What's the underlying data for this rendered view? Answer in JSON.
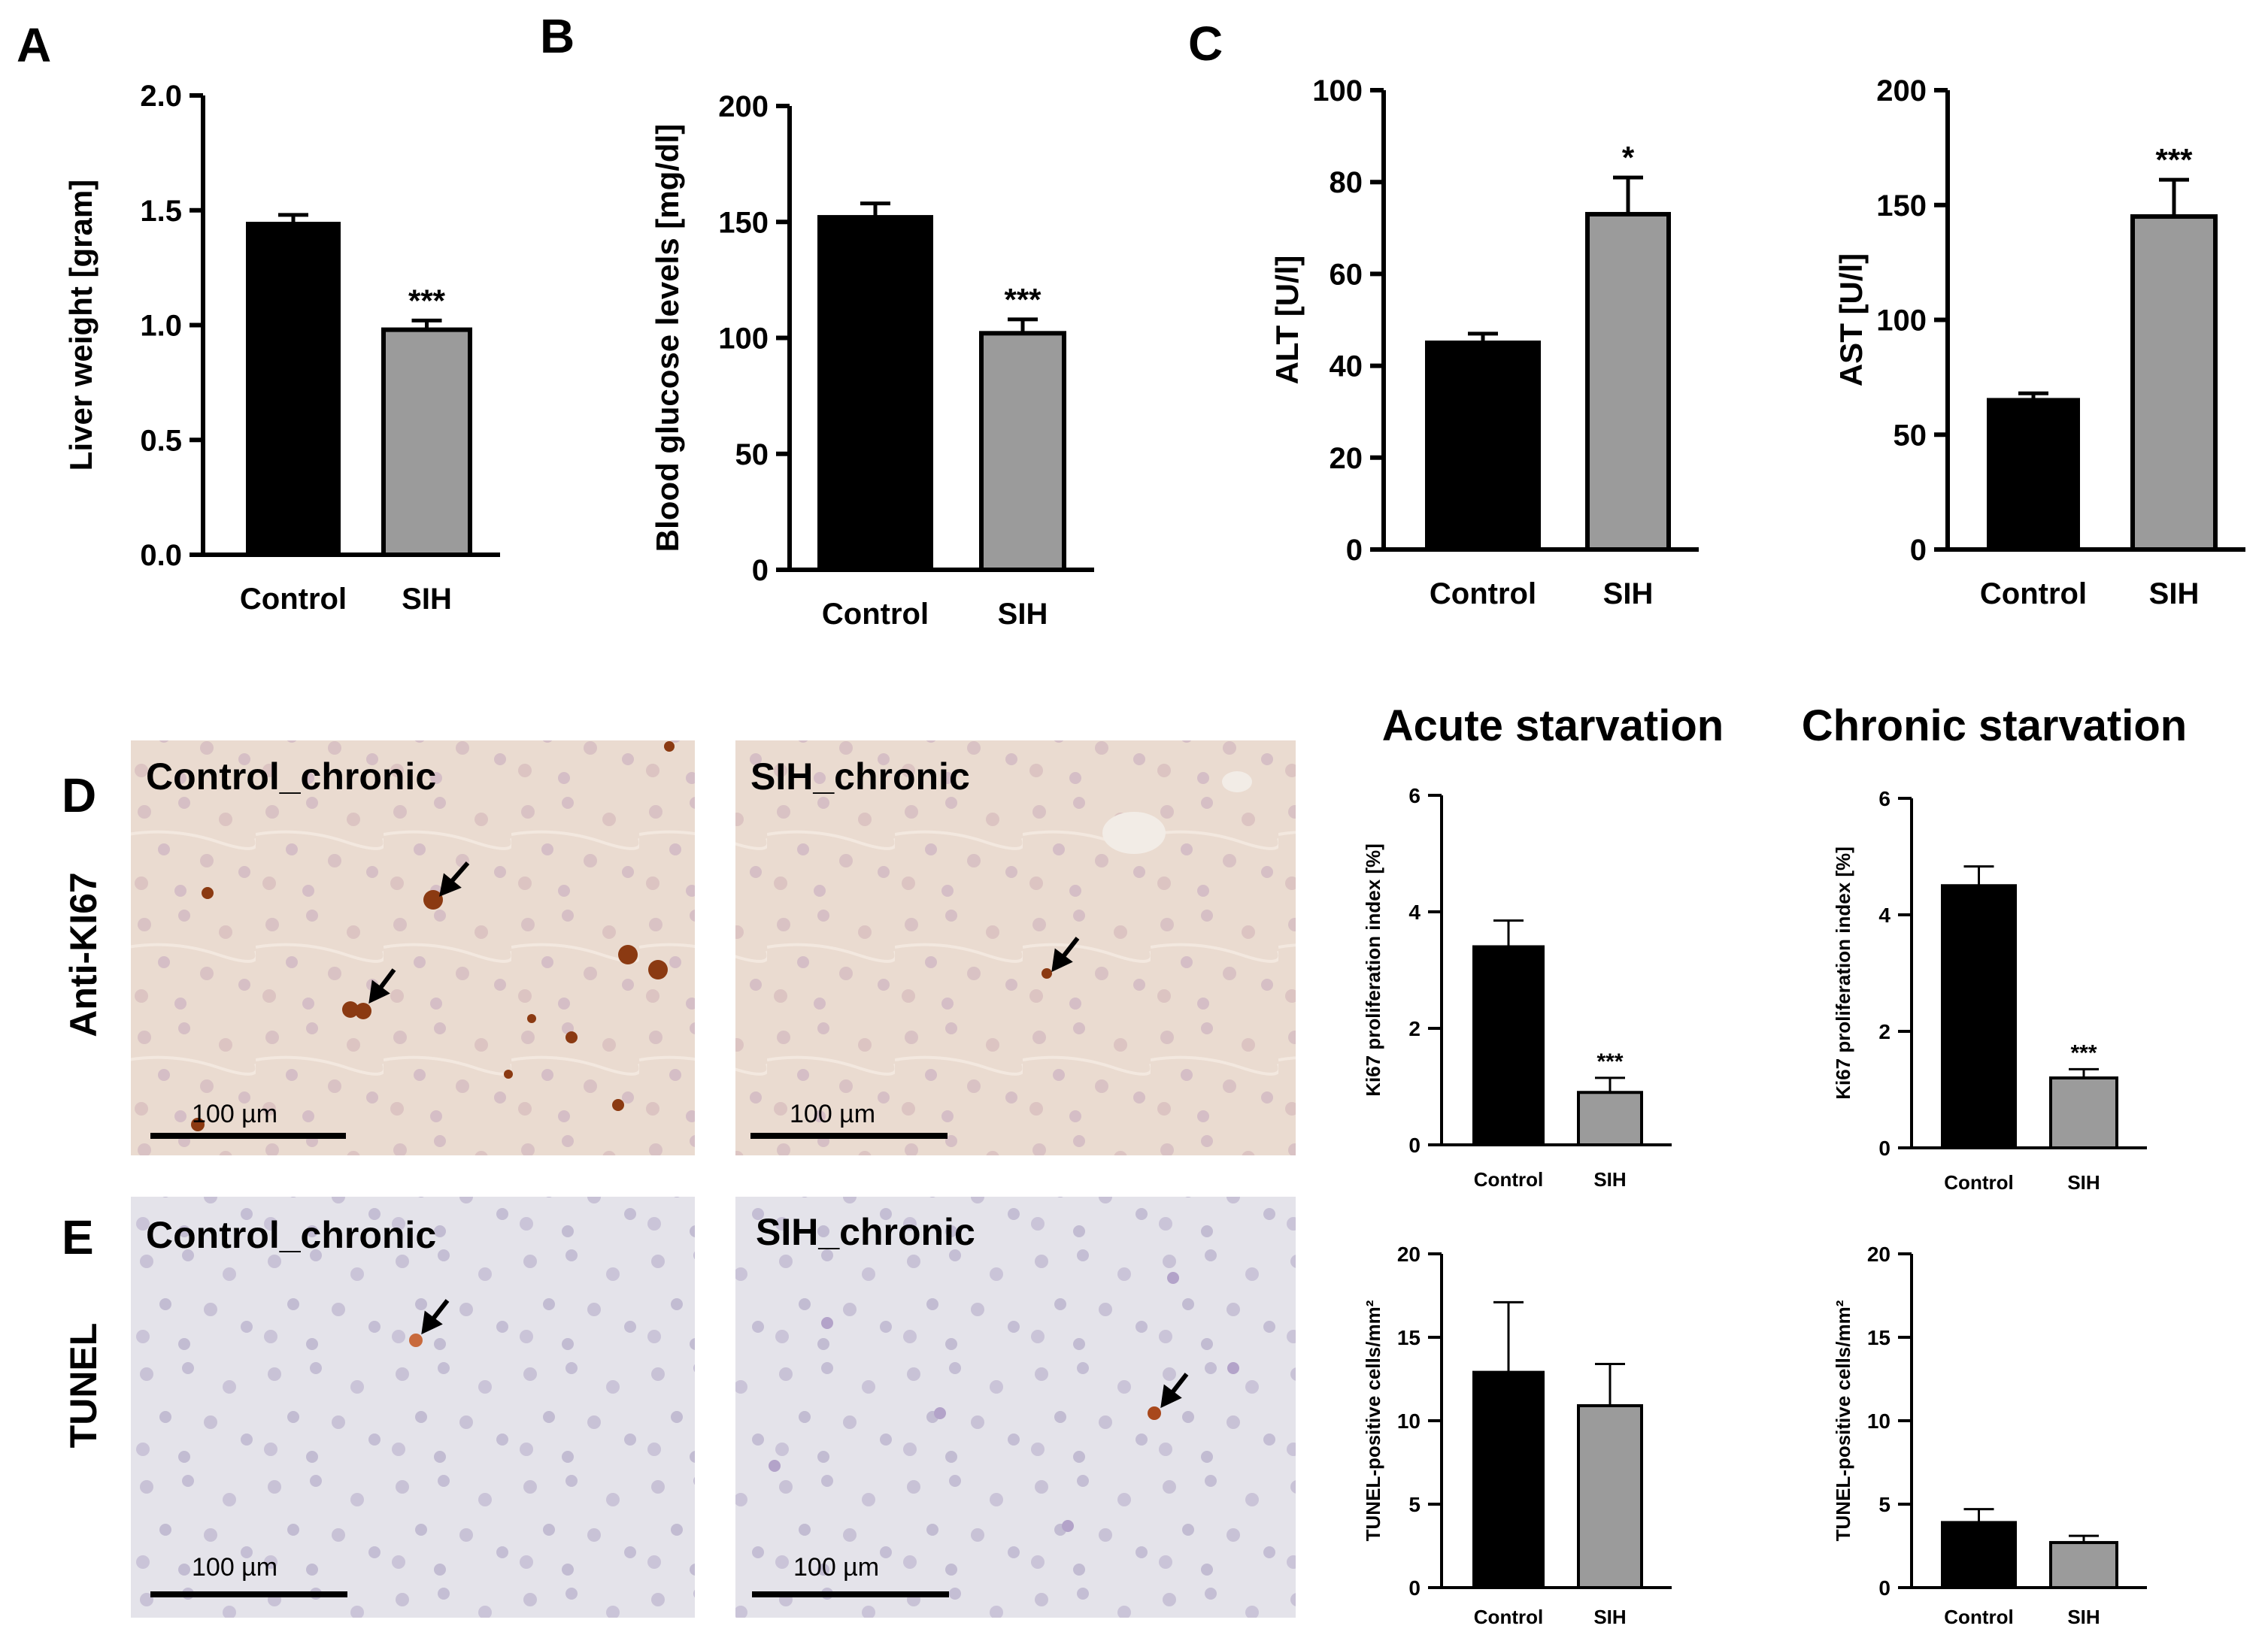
{
  "panels": {
    "A": "A",
    "B": "B",
    "C": "C",
    "D": "D",
    "E": "E"
  },
  "colors": {
    "control": "#000000",
    "sih": "#9b9b9b",
    "tissue_ki67": "#eadbd0",
    "tissue_tunel": "#e4e3ea",
    "stain": "#8b3a12"
  },
  "micrographs": [
    {
      "id": "d-control",
      "label": "Control_chronic",
      "scale": "100 µm"
    },
    {
      "id": "d-sih",
      "label": "SIH_chronic",
      "scale": "100 µm"
    },
    {
      "id": "e-control",
      "label": "Control_chronic",
      "scale": "100 µm"
    },
    {
      "id": "e-sih",
      "label": "SIH_chronic",
      "scale": "100 µm"
    }
  ],
  "row_labels": {
    "ki67": "Anti-KI67",
    "tunel": "TUNEL"
  },
  "column_titles": {
    "acute": "Acute starvation",
    "chronic": "Chronic starvation"
  },
  "chart_data": [
    {
      "id": "liver",
      "type": "bar",
      "ylabel": "Liver weight [gram]",
      "ylim": [
        0,
        2.0
      ],
      "ticks": [
        "0.0",
        "0.5",
        "1.0",
        "1.5",
        "2.0"
      ],
      "categories": [
        "Control",
        "SIH"
      ],
      "values": [
        1.44,
        0.98
      ],
      "errors": [
        0.04,
        0.04
      ],
      "significance": [
        "",
        "***"
      ]
    },
    {
      "id": "glucose",
      "type": "bar",
      "ylabel": "Blood glucose levels [mg/dl]",
      "ylim": [
        0,
        200
      ],
      "ticks": [
        "0",
        "50",
        "100",
        "150",
        "200"
      ],
      "categories": [
        "Control",
        "SIH"
      ],
      "values": [
        152,
        102
      ],
      "errors": [
        6,
        6
      ],
      "significance": [
        "",
        "***"
      ]
    },
    {
      "id": "alt",
      "type": "bar",
      "ylabel": "ALT [U/l]",
      "ylim": [
        0,
        100
      ],
      "ticks": [
        "0",
        "20",
        "40",
        "60",
        "80",
        "100"
      ],
      "categories": [
        "Control",
        "SIH"
      ],
      "values": [
        45,
        73
      ],
      "errors": [
        2,
        8
      ],
      "significance": [
        "",
        "*"
      ]
    },
    {
      "id": "ast",
      "type": "bar",
      "ylabel": "AST [U/l]",
      "ylim": [
        0,
        200
      ],
      "ticks": [
        "0",
        "50",
        "100",
        "150",
        "200"
      ],
      "categories": [
        "Control",
        "SIH"
      ],
      "values": [
        65,
        145
      ],
      "errors": [
        3,
        16
      ],
      "significance": [
        "",
        "***"
      ]
    },
    {
      "id": "ki67-acute",
      "type": "bar",
      "ylabel": "Ki67 proliferation index [%]",
      "ylim": [
        0,
        6
      ],
      "ticks": [
        "0",
        "2",
        "4",
        "6"
      ],
      "categories": [
        "Control",
        "SIH"
      ],
      "values": [
        3.4,
        0.9
      ],
      "errors": [
        0.45,
        0.25
      ],
      "significance": [
        "",
        "***"
      ]
    },
    {
      "id": "ki67-chronic",
      "type": "bar",
      "ylabel": "Ki67 proliferation index [%]",
      "ylim": [
        0,
        6
      ],
      "ticks": [
        "0",
        "2",
        "4",
        "6"
      ],
      "categories": [
        "Control",
        "SIH"
      ],
      "values": [
        4.5,
        1.2
      ],
      "errors": [
        0.33,
        0.15
      ],
      "significance": [
        "",
        "***"
      ]
    },
    {
      "id": "tunel-acute",
      "type": "bar",
      "ylabel": "TUNEL-positive cells/mm²",
      "ylim": [
        0,
        20
      ],
      "ticks": [
        "0",
        "5",
        "10",
        "15",
        "20"
      ],
      "categories": [
        "Control",
        "SIH"
      ],
      "values": [
        12.9,
        10.9
      ],
      "errors": [
        4.2,
        2.5
      ],
      "significance": [
        "",
        ""
      ]
    },
    {
      "id": "tunel-chronic",
      "type": "bar",
      "ylabel": "TUNEL-positive cells/mm²",
      "ylim": [
        0,
        20
      ],
      "ticks": [
        "0",
        "5",
        "10",
        "15",
        "20"
      ],
      "categories": [
        "Control",
        "SIH"
      ],
      "values": [
        3.9,
        2.7
      ],
      "errors": [
        0.8,
        0.4
      ],
      "significance": [
        "",
        ""
      ]
    }
  ]
}
